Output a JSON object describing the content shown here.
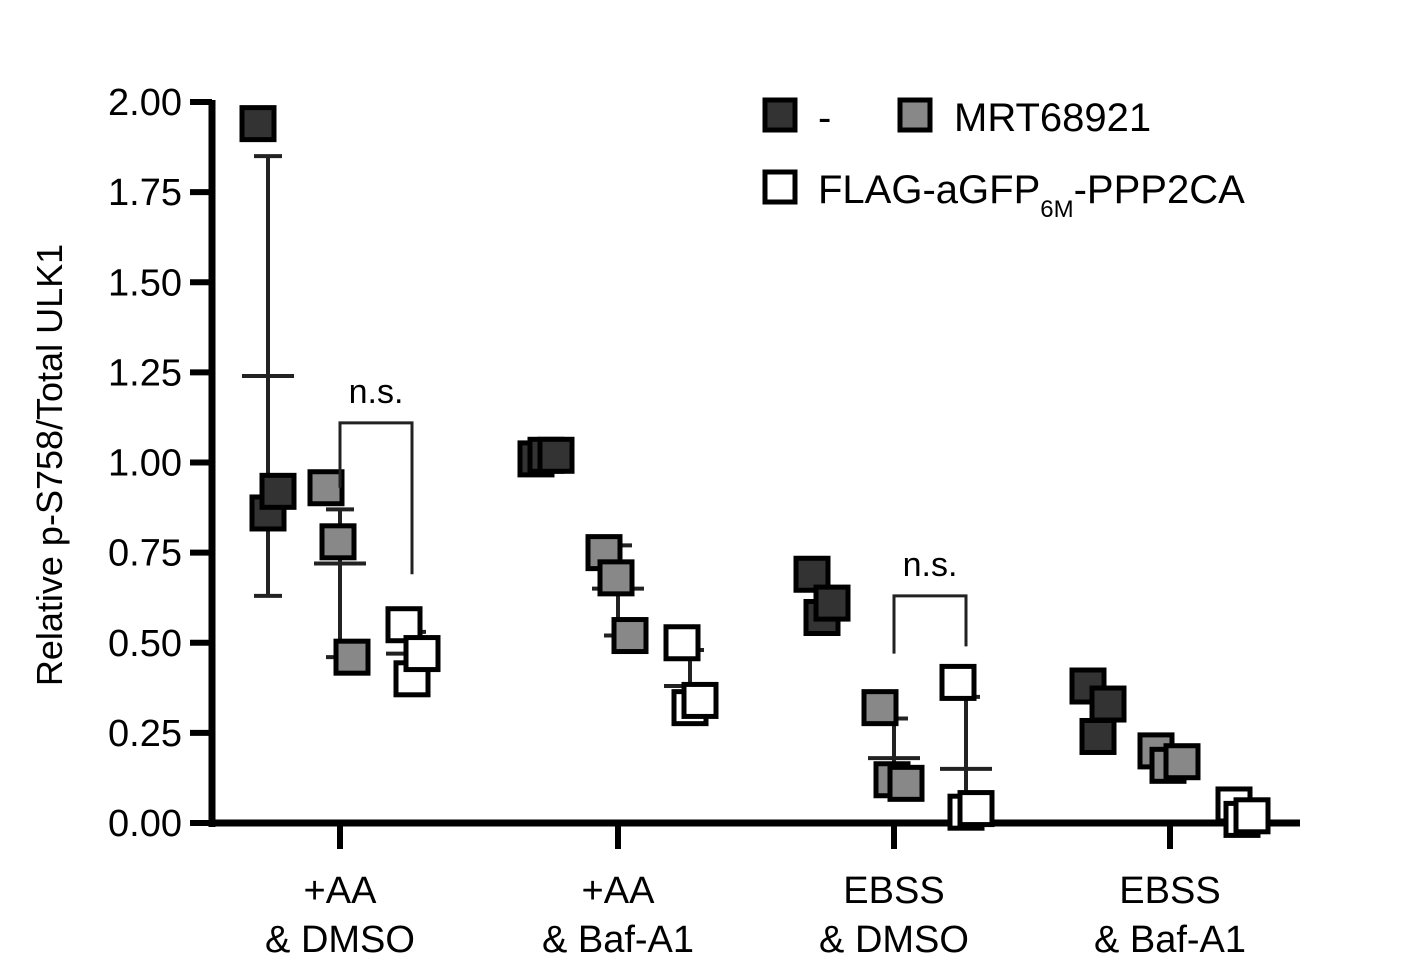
{
  "chart_data": {
    "type": "scatter",
    "ylabel": "Relative p-S758/Total ULK1",
    "xlabel": "",
    "ylim": [
      0,
      2.0
    ],
    "yticks": [
      "0.00",
      "0.25",
      "0.50",
      "0.75",
      "1.00",
      "1.25",
      "1.50",
      "1.75",
      "2.00"
    ],
    "categories": [
      {
        "line1": "+AA",
        "line2": "& DMSO"
      },
      {
        "line1": "+AA",
        "line2": "& Baf-A1"
      },
      {
        "line1": "EBSS",
        "line2": "& DMSO"
      },
      {
        "line1": "EBSS",
        "line2": "& Baf-A1"
      }
    ],
    "legend": {
      "position": "top-right",
      "entries": [
        {
          "label": "-",
          "color": "#333333"
        },
        {
          "label": "MRT68921",
          "color": "#888888"
        },
        {
          "label_main": "FLAG-aGFP",
          "label_sub": "6M",
          "label_tail": "-PPP2CA",
          "color": "#ffffff"
        }
      ]
    },
    "series": [
      {
        "color": "#333333",
        "groups": [
          {
            "points": [
              1.94,
              0.86,
              0.92
            ],
            "mean": 1.24,
            "sd": [
              0.63,
              1.85
            ]
          },
          {
            "points": [
              1.01,
              1.02,
              1.02
            ],
            "mean": 1.02,
            "sd": null
          },
          {
            "points": [
              0.69,
              0.57,
              0.61
            ],
            "mean": 0.62,
            "sd": null
          },
          {
            "points": [
              0.38,
              0.24,
              0.33
            ],
            "mean": 0.32,
            "sd": null
          }
        ]
      },
      {
        "color": "#888888",
        "groups": [
          {
            "points": [
              0.93,
              0.78,
              0.46
            ],
            "mean": 0.72,
            "sd": [
              0.46,
              0.87
            ]
          },
          {
            "points": [
              0.75,
              0.68,
              0.52
            ],
            "mean": 0.65,
            "sd": [
              0.52,
              0.77
            ]
          },
          {
            "points": [
              0.32,
              0.12,
              0.11
            ],
            "mean": 0.18,
            "sd": [
              0.08,
              0.29
            ]
          },
          {
            "points": [
              0.2,
              0.16,
              0.17
            ],
            "mean": 0.17,
            "sd": null
          }
        ]
      },
      {
        "color": "#ffffff",
        "groups": [
          {
            "points": [
              0.55,
              0.4,
              0.47
            ],
            "mean": 0.47,
            "sd": [
              0.41,
              0.53
            ]
          },
          {
            "points": [
              0.5,
              0.32,
              0.34
            ],
            "mean": 0.38,
            "sd": [
              0.3,
              0.48
            ]
          },
          {
            "points": [
              0.39,
              0.03,
              0.04
            ],
            "mean": 0.15,
            "sd": [
              0.0,
              0.35
            ]
          },
          {
            "points": [
              0.05,
              0.01,
              0.02
            ],
            "mean": 0.03,
            "sd": null
          }
        ]
      }
    ],
    "annotations": [
      {
        "text": "n.s.",
        "category": 0,
        "from_series": 1,
        "to_series": 2,
        "y": 1.11,
        "y_left_end": 0.93,
        "y_right_end": 0.69
      },
      {
        "text": "n.s.",
        "category": 2,
        "from_series": 1,
        "to_series": 2,
        "y": 0.63,
        "y_left_end": 0.47,
        "y_right_end": 0.49
      }
    ],
    "grid": false
  }
}
